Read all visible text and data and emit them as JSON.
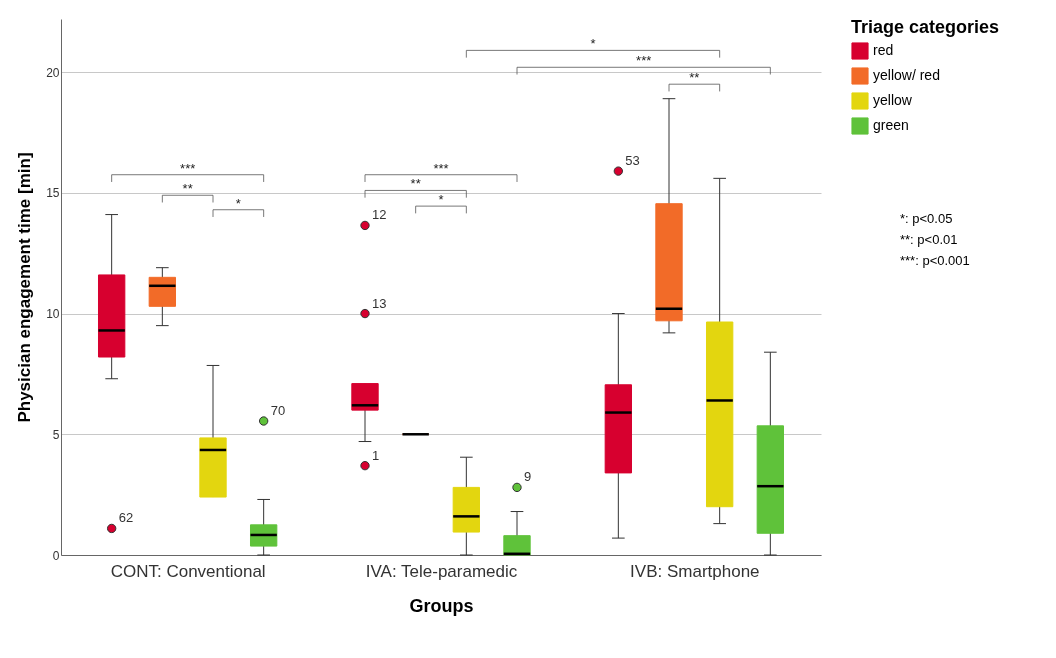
{
  "chart_data": {
    "type": "box",
    "xlabel": "Groups",
    "ylabel": "Physician engagement time [min]",
    "legend_title": "Triage categories",
    "categories": [
      "CONT: Conventional",
      "IVA: Tele-paramedic",
      "IVB: Smartphone"
    ],
    "ylim": [
      0,
      22.2
    ],
    "yticks": [
      0,
      5,
      10,
      15,
      20
    ],
    "grid": "y",
    "legend": "top right",
    "series": [
      {
        "name": "red",
        "color": "#d7002f",
        "boxes": [
          {
            "low": 7.3,
            "q1": 8.2,
            "median": 9.3,
            "q3": 11.6,
            "high": 14.1,
            "outliers": [
              1.1
            ]
          },
          {
            "low": 4.7,
            "q1": 6.0,
            "median": 6.2,
            "q3": 7.1,
            "high": 7.1,
            "outliers": [
              13.65,
              10.0,
              3.7
            ]
          },
          {
            "low": 0.7,
            "q1": 3.4,
            "median": 5.9,
            "q3": 7.05,
            "high": 10.0,
            "outliers": [
              15.9
            ]
          }
        ]
      },
      {
        "name": "yellow/ red",
        "color": "#f26b28",
        "boxes": [
          {
            "low": 9.5,
            "q1": 10.3,
            "median": 11.15,
            "q3": 11.5,
            "high": 11.9
          },
          {
            "low": 5.0,
            "q1": 5.0,
            "median": 5.0,
            "q3": 5.0,
            "high": 5.0
          },
          {
            "low": 9.2,
            "q1": 9.7,
            "median": 10.2,
            "q3": 14.55,
            "high": 18.9
          }
        ]
      },
      {
        "name": "yellow",
        "color": "#e3d60f",
        "boxes": [
          {
            "low": 2.4,
            "q1": 2.4,
            "median": 4.35,
            "q3": 4.85,
            "high": 7.85
          },
          {
            "low": 0,
            "q1": 0.95,
            "median": 1.6,
            "q3": 2.8,
            "high": 4.05
          },
          {
            "low": 1.3,
            "q1": 2.0,
            "median": 6.4,
            "q3": 9.65,
            "high": 15.6
          }
        ]
      },
      {
        "name": "green",
        "color": "#5fc23a",
        "boxes": [
          {
            "low": 0,
            "q1": 0.37,
            "median": 0.83,
            "q3": 1.25,
            "high": 2.3,
            "outliers": [
              5.55
            ]
          },
          {
            "low": 0,
            "q1": 0,
            "median": 0.05,
            "q3": 0.8,
            "high": 1.8,
            "outliers": [
              2.8
            ]
          },
          {
            "low": 0,
            "q1": 0.9,
            "median": 2.85,
            "q3": 5.35,
            "high": 8.4
          }
        ]
      }
    ],
    "annotations": [
      "***",
      "**",
      "*",
      "***",
      "**",
      "*",
      "*",
      "***",
      "**",
      "62",
      "12",
      "13",
      "1",
      "53",
      "70",
      "9",
      "*: p<0.05",
      "**: p<0.01",
      "***: p<0.001"
    ]
  }
}
